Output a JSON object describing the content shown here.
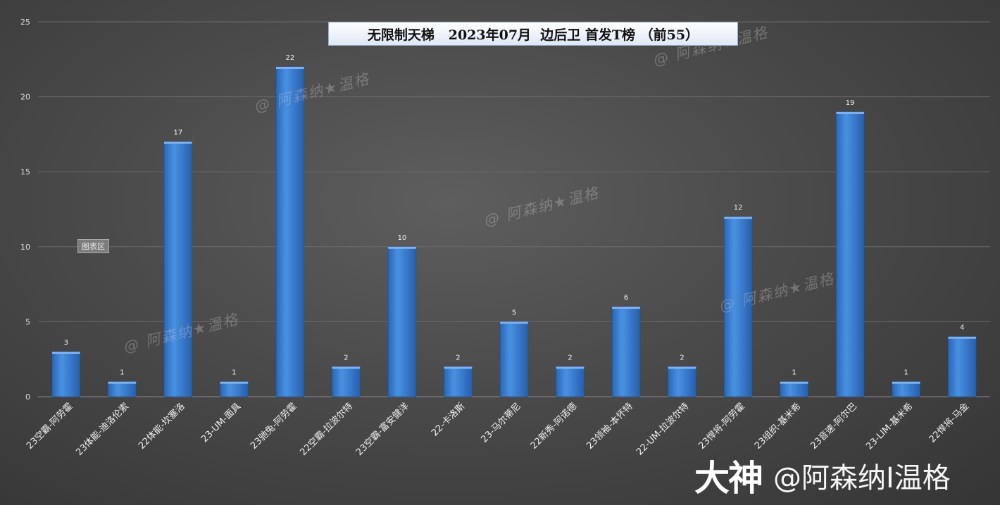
{
  "title": "无限制天梯   2023年07月  边后卫 首发T榜 （前55）",
  "chart_area_label": "图表区",
  "watermark_text": "@    阿森纳★温格",
  "brand": {
    "logo": "大神",
    "handle": "@阿森纳I温格"
  },
  "colors": {
    "bar_top": "#4a8fe0",
    "bar_bottom": "#1f5fae",
    "grid": "#6a6a6a"
  },
  "chart_data": {
    "type": "bar",
    "title": "无限制天梯   2023年07月  边后卫 首发T榜 （前55）",
    "xlabel": "",
    "ylabel": "",
    "ylim": [
      0,
      25
    ],
    "yticks": [
      0,
      5,
      10,
      15,
      20,
      25
    ],
    "grid": true,
    "data_labels": true,
    "categories": [
      "23空霸-阿劳霍",
      "23体能-迪洛伦索",
      "22体能-坎塞洛",
      "23-UM-面具",
      "23驰兔-阿劳霍",
      "22空霸-拉波尔特",
      "23空霸-富安健洋",
      "22-卡洛斯",
      "23-马尔蒂尼",
      "22新秀-阿诺德",
      "23领袖-本怀特",
      "22-UM-拉波尔特",
      "23悍将-阿劳霍",
      "23组织-基米希",
      "23音速-阿尔巴",
      "23-LIM-基米希",
      "22悍将-马金"
    ],
    "values": [
      3,
      1,
      17,
      1,
      22,
      2,
      10,
      2,
      5,
      2,
      6,
      2,
      12,
      1,
      19,
      1,
      4
    ]
  }
}
